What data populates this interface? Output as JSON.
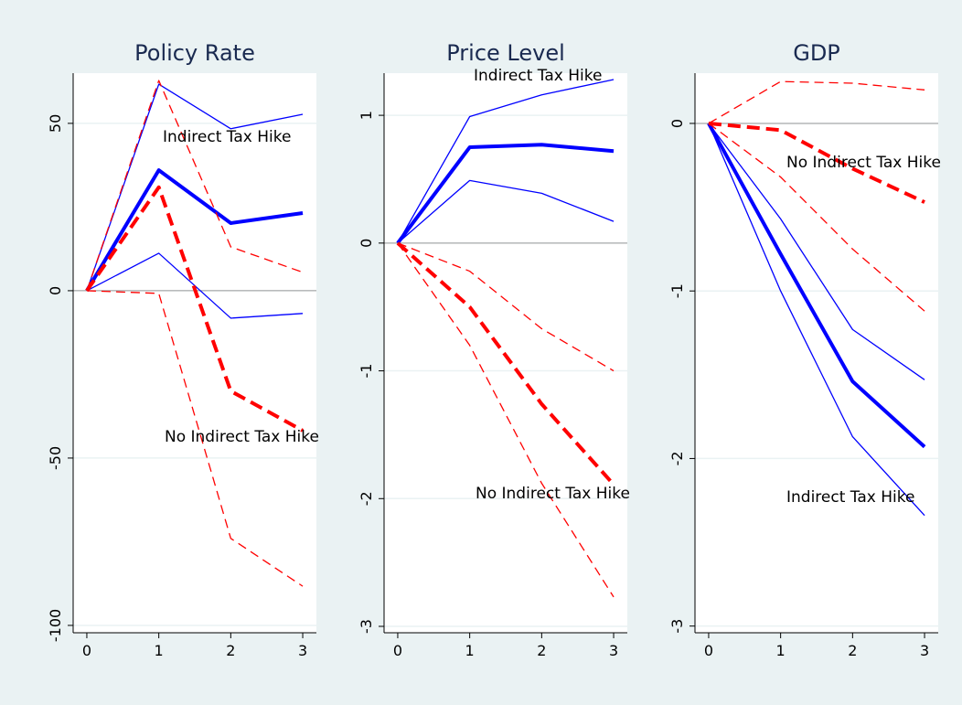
{
  "chart_data": [
    {
      "type": "line",
      "title": "Policy Rate",
      "x": [
        0,
        1,
        2,
        3
      ],
      "xlim": [
        -0.19,
        3.19
      ],
      "xticks": [
        0,
        1,
        2,
        3
      ],
      "ylim": [
        -102.2,
        65
      ],
      "yticks": [
        -100,
        -50,
        0,
        50
      ],
      "grid": true,
      "hline": 0,
      "series": [
        {
          "color": "#0000ff",
          "dashed": false,
          "width": 4,
          "values": [
            0,
            36,
            20.2,
            23.2
          ]
        },
        {
          "color": "#0000ff",
          "dashed": false,
          "width": 1.3,
          "values": [
            0,
            61.7,
            48.4,
            52.7
          ]
        },
        {
          "color": "#0000ff",
          "dashed": false,
          "width": 1.3,
          "values": [
            0,
            11.2,
            -8.2,
            -6.8
          ]
        },
        {
          "color": "#ff0000",
          "dashed": true,
          "width": 4,
          "values": [
            0,
            30.9,
            -30,
            -41.8
          ]
        },
        {
          "color": "#ff0000",
          "dashed": true,
          "width": 1.3,
          "values": [
            0,
            62.8,
            13.1,
            5.5
          ]
        },
        {
          "color": "#ff0000",
          "dashed": true,
          "width": 1.3,
          "values": [
            0,
            -0.8,
            -74,
            -88.3
          ]
        }
      ],
      "annotations": [
        "Indirect Tax Hike",
        "No Indirect Tax Hike"
      ]
    },
    {
      "type": "line",
      "title": "Price Level",
      "x": [
        0,
        1,
        2,
        3
      ],
      "xlim": [
        -0.19,
        3.19
      ],
      "xticks": [
        0,
        1,
        2,
        3
      ],
      "ylim": [
        -3.05,
        1.33
      ],
      "yticks": [
        -3,
        -2,
        -1,
        0,
        1
      ],
      "grid": true,
      "hline": 0,
      "series": [
        {
          "color": "#0000ff",
          "dashed": false,
          "width": 4,
          "values": [
            0,
            0.75,
            0.77,
            0.72
          ]
        },
        {
          "color": "#0000ff",
          "dashed": false,
          "width": 1.3,
          "values": [
            0,
            0.99,
            1.16,
            1.28
          ]
        },
        {
          "color": "#0000ff",
          "dashed": false,
          "width": 1.3,
          "values": [
            0,
            0.49,
            0.39,
            0.17
          ]
        },
        {
          "color": "#ff0000",
          "dashed": true,
          "width": 4,
          "values": [
            0,
            -0.5,
            -1.26,
            -1.89
          ]
        },
        {
          "color": "#ff0000",
          "dashed": true,
          "width": 1.3,
          "values": [
            0,
            -0.22,
            -0.67,
            -1.0
          ]
        },
        {
          "color": "#ff0000",
          "dashed": true,
          "width": 1.3,
          "values": [
            0,
            -0.8,
            -1.88,
            -2.77
          ]
        }
      ],
      "annotations": [
        "Indirect Tax Hike",
        "No Indirect Tax Hike"
      ]
    },
    {
      "type": "line",
      "title": "GDP",
      "x": [
        0,
        1,
        2,
        3
      ],
      "xlim": [
        -0.19,
        3.19
      ],
      "xticks": [
        0,
        1,
        2,
        3
      ],
      "ylim": [
        -3.04,
        0.3
      ],
      "yticks": [
        -3,
        -2,
        -1,
        0
      ],
      "grid": true,
      "hline": 0,
      "series": [
        {
          "color": "#0000ff",
          "dashed": false,
          "width": 4,
          "values": [
            0,
            -0.78,
            -1.54,
            -1.93
          ]
        },
        {
          "color": "#0000ff",
          "dashed": false,
          "width": 1.3,
          "values": [
            0,
            -0.57,
            -1.23,
            -1.53
          ]
        },
        {
          "color": "#0000ff",
          "dashed": false,
          "width": 1.3,
          "values": [
            0,
            -1.0,
            -1.87,
            -2.34
          ]
        },
        {
          "color": "#ff0000",
          "dashed": true,
          "width": 4,
          "values": [
            0,
            -0.04,
            -0.27,
            -0.47
          ]
        },
        {
          "color": "#ff0000",
          "dashed": true,
          "width": 1.3,
          "values": [
            0,
            0.25,
            0.24,
            0.2
          ]
        },
        {
          "color": "#ff0000",
          "dashed": true,
          "width": 1.3,
          "values": [
            0,
            -0.32,
            -0.75,
            -1.12
          ]
        }
      ],
      "annotations": [
        "No Indirect Tax Hike",
        "Indirect Tax Hike"
      ]
    }
  ]
}
